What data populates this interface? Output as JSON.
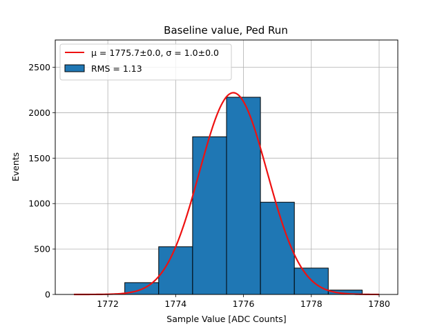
{
  "chart_data": {
    "type": "bar",
    "title": "Baseline value, Ped Run",
    "xlabel": "Sample Value [ADC Counts]",
    "ylabel": "Events",
    "xlim": [
      1770.45,
      1780.55
    ],
    "ylim": [
      0,
      2800
    ],
    "grid": true,
    "legend_position": "top-left",
    "x_ticks": [
      1772,
      1774,
      1776,
      1778,
      1780
    ],
    "y_ticks": [
      0,
      500,
      1000,
      1500,
      2000,
      2500
    ],
    "bins": [
      {
        "x0": 1770.5,
        "x1": 1771.5,
        "value": 0
      },
      {
        "x0": 1771.5,
        "x1": 1772.5,
        "value": 0
      },
      {
        "x0": 1772.5,
        "x1": 1773.5,
        "value": 130
      },
      {
        "x0": 1773.5,
        "x1": 1774.5,
        "value": 525
      },
      {
        "x0": 1774.5,
        "x1": 1775.5,
        "value": 1735
      },
      {
        "x0": 1775.5,
        "x1": 1776.5,
        "value": 2170
      },
      {
        "x0": 1776.5,
        "x1": 1777.5,
        "value": 1015
      },
      {
        "x0": 1777.5,
        "x1": 1778.5,
        "value": 290
      },
      {
        "x0": 1778.5,
        "x1": 1779.5,
        "value": 48
      },
      {
        "x0": 1779.5,
        "x1": 1780.5,
        "value": 0
      }
    ],
    "fit": {
      "mu": 1775.7,
      "sigma": 1.0,
      "amplitude": 2220,
      "x_range": [
        1771,
        1780
      ]
    },
    "series": [
      {
        "name": "$\\mu=1775.7\\pm0.0,\\sigma=1.0\\pm0.0$",
        "label": "μ = 1775.7±0.0, σ = 1.0±0.0",
        "type": "line",
        "color": "#ee1111"
      },
      {
        "name": "RMS = 1.13",
        "label": "RMS = 1.13",
        "type": "bar",
        "color": "#1f77b4"
      }
    ]
  }
}
